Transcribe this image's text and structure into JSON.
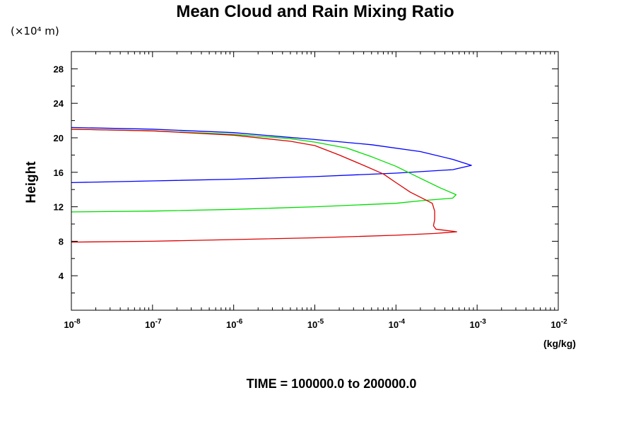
{
  "chart_data": {
    "type": "line",
    "title": "Mean Cloud and Rain Mixing Ratio",
    "ylabel": "Height",
    "y_units": "(×10⁴ m)",
    "xlabel": "(kg/kg)",
    "footer": "TIME = 100000.0 to 200000.0",
    "x_scale": "log",
    "xlim": [
      1e-08,
      0.01
    ],
    "ylim": [
      0,
      30
    ],
    "x_tick_labels": [
      {
        "base": "10",
        "exp": "-8"
      },
      {
        "base": "10",
        "exp": "-7"
      },
      {
        "base": "10",
        "exp": "-6"
      },
      {
        "base": "10",
        "exp": "-5"
      },
      {
        "base": "10",
        "exp": "-4"
      },
      {
        "base": "10",
        "exp": "-3"
      },
      {
        "base": "10",
        "exp": "-2"
      }
    ],
    "y_ticks": [
      4,
      8,
      12,
      16,
      20,
      24,
      28
    ],
    "grid": false,
    "series": [
      {
        "color": "#0000ff",
        "x": [
          1e-08,
          1e-07,
          1e-06,
          1e-05,
          5e-05,
          0.0002,
          0.0005,
          0.00085,
          0.0005,
          0.0001,
          1e-05,
          1e-06,
          1e-07,
          1e-08
        ],
        "y": [
          21.2,
          21.0,
          20.6,
          19.8,
          19.2,
          18.4,
          17.5,
          16.8,
          16.3,
          15.9,
          15.5,
          15.2,
          15.0,
          14.8
        ]
      },
      {
        "color": "#00dd00",
        "x": [
          1e-08,
          1e-07,
          1e-06,
          5e-06,
          1e-05,
          2.5e-05,
          5e-05,
          0.0001,
          0.0002,
          0.00035,
          0.00055,
          0.0005,
          0.0002,
          0.0001,
          1e-05,
          1e-06,
          1e-07,
          1e-08
        ],
        "y": [
          21.0,
          20.8,
          20.4,
          19.9,
          19.5,
          18.8,
          17.8,
          16.7,
          15.3,
          14.2,
          13.4,
          13.0,
          12.7,
          12.4,
          12.0,
          11.7,
          11.5,
          11.4
        ]
      },
      {
        "color": "#dd0000",
        "x": [
          1e-08,
          1e-07,
          1e-06,
          5e-06,
          1e-05,
          2e-05,
          4e-05,
          7e-05,
          0.0001,
          0.00015,
          0.00022,
          0.00028,
          0.0003,
          0.0003,
          0.00029,
          0.00031,
          0.00056,
          0.0003,
          0.0001,
          1e-05,
          1e-06,
          1e-07,
          1e-08
        ],
        "y": [
          21.0,
          20.8,
          20.3,
          19.6,
          19.1,
          18.0,
          16.8,
          15.8,
          14.8,
          13.7,
          12.9,
          12.4,
          11.5,
          10.5,
          9.8,
          9.4,
          9.1,
          8.9,
          8.7,
          8.4,
          8.2,
          8.0,
          7.9
        ]
      }
    ]
  }
}
